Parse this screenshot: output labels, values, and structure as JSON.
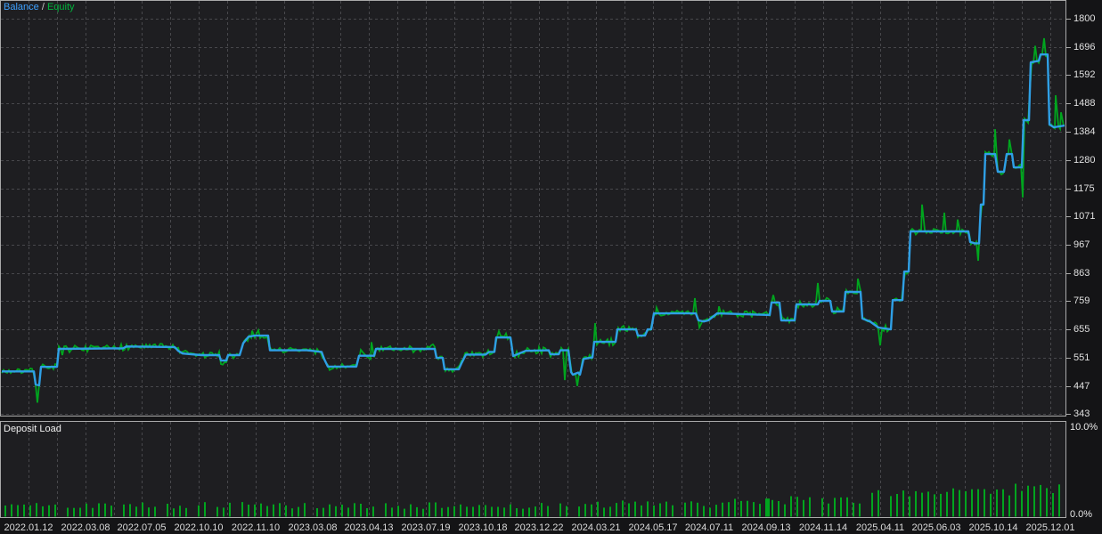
{
  "legend": {
    "balance_label": "Balance",
    "separator": "/",
    "equity_label": "Equity"
  },
  "deposit_load": {
    "title": "Deposit Load",
    "max_label": "10.0%",
    "min_label": "0.0%"
  },
  "colors": {
    "background": "#1e1e21",
    "grid": "#48484c",
    "border": "#a9a9a9",
    "balance_line": "#2f9fe6",
    "equity_line": "#00a51e",
    "deposit_bar": "#00a51e",
    "legend_balance": "#3da1ff",
    "legend_equity": "#00b43c"
  },
  "chart_data": [
    {
      "type": "line",
      "title": "Balance / Equity",
      "legend": [
        "Balance",
        "Equity"
      ],
      "legend_position": "top-left",
      "grid": "dashed",
      "x_unit": "px",
      "ylim": [
        343,
        1800
      ],
      "y_ticks": [
        1800,
        1696,
        1592,
        1488,
        1384,
        1280,
        1175,
        1071,
        967,
        863,
        759,
        655,
        551,
        447,
        343
      ],
      "x_ticks": [
        "2022.01.12",
        "2022.03.08",
        "2022.07.05",
        "2022.10.10",
        "2022.11.10",
        "2023.03.08",
        "2023.04.13",
        "2023.07.19",
        "2023.10.18",
        "2023.12.22",
        "2024.03.21",
        "2024.05.17",
        "2024.07.11",
        "2024.09.13",
        "2024.11.14",
        "2025.04.11",
        "2025.06.03",
        "2025.10.14",
        "2025.12.01"
      ],
      "series": [
        {
          "name": "Balance",
          "color": "#2f9fe6",
          "points": [
            [
              2,
              500
            ],
            [
              38,
              500
            ],
            [
              40,
              452
            ],
            [
              44,
              449
            ],
            [
              46,
              517
            ],
            [
              64,
              517
            ],
            [
              66,
              583
            ],
            [
              138,
              585
            ],
            [
              142,
              592
            ],
            [
              196,
              590
            ],
            [
              200,
              576
            ],
            [
              205,
              566
            ],
            [
              226,
              560
            ],
            [
              246,
              560
            ],
            [
              248,
              540
            ],
            [
              254,
              540
            ],
            [
              256,
              560
            ],
            [
              269,
              560
            ],
            [
              273,
              604
            ],
            [
              279,
              628
            ],
            [
              286,
              632
            ],
            [
              301,
              632
            ],
            [
              303,
              578
            ],
            [
              345,
              578
            ],
            [
              361,
              572
            ],
            [
              364,
              545
            ],
            [
              368,
              518
            ],
            [
              400,
              518
            ],
            [
              403,
              558
            ],
            [
              420,
              558
            ],
            [
              422,
              583
            ],
            [
              488,
              583
            ],
            [
              490,
              550
            ],
            [
              497,
              550
            ],
            [
              499,
              508
            ],
            [
              515,
              508
            ],
            [
              518,
              530
            ],
            [
              523,
              562
            ],
            [
              545,
              562
            ],
            [
              549,
              572
            ],
            [
              555,
              572
            ],
            [
              557,
              625
            ],
            [
              573,
              625
            ],
            [
              576,
              557
            ],
            [
              590,
              576
            ],
            [
              616,
              578
            ],
            [
              618,
              563
            ],
            [
              627,
              563
            ],
            [
              629,
              578
            ],
            [
              638,
              578
            ],
            [
              641,
              498
            ],
            [
              643,
              488
            ],
            [
              649,
              496
            ],
            [
              651,
              488
            ],
            [
              655,
              546
            ],
            [
              663,
              551
            ],
            [
              665,
              551
            ],
            [
              667,
              609
            ],
            [
              691,
              609
            ],
            [
              693,
              655
            ],
            [
              714,
              655
            ],
            [
              716,
              632
            ],
            [
              724,
              632
            ],
            [
              727,
              655
            ],
            [
              731,
              655
            ],
            [
              734,
              714
            ],
            [
              781,
              714
            ],
            [
              784,
              688
            ],
            [
              790,
              684
            ],
            [
              795,
              688
            ],
            [
              802,
              706
            ],
            [
              805,
              714
            ],
            [
              864,
              708
            ],
            [
              866,
              754
            ],
            [
              875,
              754
            ],
            [
              877,
              688
            ],
            [
              892,
              688
            ],
            [
              894,
              747
            ],
            [
              918,
              747
            ],
            [
              920,
              760
            ],
            [
              932,
              760
            ],
            [
              934,
              721
            ],
            [
              947,
              721
            ],
            [
              949,
              793
            ],
            [
              966,
              793
            ],
            [
              968,
              695
            ],
            [
              977,
              683
            ],
            [
              986,
              662
            ],
            [
              1000,
              655
            ],
            [
              1002,
              763
            ],
            [
              1013,
              763
            ],
            [
              1015,
              868
            ],
            [
              1020,
              868
            ],
            [
              1022,
              1016
            ],
            [
              1087,
              1016
            ],
            [
              1089,
              977
            ],
            [
              1094,
              972
            ],
            [
              1099,
              972
            ],
            [
              1101,
              1115
            ],
            [
              1104,
              1115
            ],
            [
              1106,
              1301
            ],
            [
              1117,
              1301
            ],
            [
              1120,
              1236
            ],
            [
              1127,
              1236
            ],
            [
              1130,
              1301
            ],
            [
              1136,
              1301
            ],
            [
              1138,
              1252
            ],
            [
              1147,
              1252
            ],
            [
              1149,
              1426
            ],
            [
              1155,
              1426
            ],
            [
              1157,
              1639
            ],
            [
              1166,
              1645
            ],
            [
              1168,
              1668
            ],
            [
              1176,
              1668
            ],
            [
              1178,
              1410
            ],
            [
              1183,
              1400
            ],
            [
              1195,
              1406
            ]
          ]
        },
        {
          "name": "Equity",
          "color": "#00a51e",
          "style": "noisy-overlay-of-balance",
          "noise_amplitude": 10,
          "spikes": [
            [
              42,
              385
            ],
            [
              70,
              560
            ],
            [
              136,
              600
            ],
            [
              180,
              602
            ],
            [
              250,
              525
            ],
            [
              283,
              650
            ],
            [
              290,
              652
            ],
            [
              370,
              505
            ],
            [
              405,
              580
            ],
            [
              417,
              608
            ],
            [
              486,
              600
            ],
            [
              520,
              545
            ],
            [
              560,
              648
            ],
            [
              568,
              640
            ],
            [
              605,
              590
            ],
            [
              634,
              468
            ],
            [
              648,
              446
            ],
            [
              668,
              678
            ],
            [
              700,
              668
            ],
            [
              737,
              735
            ],
            [
              780,
              770
            ],
            [
              785,
              662
            ],
            [
              807,
              740
            ],
            [
              845,
              722
            ],
            [
              868,
              782
            ],
            [
              898,
              758
            ],
            [
              918,
              826
            ],
            [
              940,
              735
            ],
            [
              963,
              842
            ],
            [
              988,
              596
            ],
            [
              1035,
              1115
            ],
            [
              1060,
              1085
            ],
            [
              1075,
              1060
            ],
            [
              1098,
              908
            ],
            [
              1117,
              1393
            ],
            [
              1133,
              1355
            ],
            [
              1148,
              1141
            ],
            [
              1162,
              1700
            ],
            [
              1172,
              1728
            ],
            [
              1185,
              1518
            ],
            [
              1191,
              1455
            ]
          ]
        }
      ]
    },
    {
      "type": "bar",
      "title": "Deposit Load",
      "ylim_pct": [
        0.0,
        10.0
      ],
      "max_label": "10.0%",
      "min_label": "0.0%",
      "bar_color": "#00a51e",
      "bar_spacing_px": 7,
      "approximate": true,
      "profile": [
        {
          "from": 5,
          "to": 120,
          "min": 0.9,
          "max": 1.5
        },
        {
          "from": 120,
          "to": 300,
          "min": 0.8,
          "max": 1.6
        },
        {
          "from": 300,
          "to": 420,
          "min": 0.8,
          "max": 1.5
        },
        {
          "from": 420,
          "to": 650,
          "min": 0.8,
          "max": 1.5
        },
        {
          "from": 650,
          "to": 820,
          "min": 0.9,
          "max": 1.7
        },
        {
          "from": 820,
          "to": 880,
          "min": 1.2,
          "max": 2.2
        },
        {
          "from": 880,
          "to": 970,
          "min": 1.3,
          "max": 2.2
        },
        {
          "from": 970,
          "to": 1060,
          "min": 1.9,
          "max": 2.8
        },
        {
          "from": 1060,
          "to": 1140,
          "min": 2.1,
          "max": 3.0
        },
        {
          "from": 1140,
          "to": 1192,
          "min": 2.4,
          "max": 3.5
        }
      ],
      "wide_bar": {
        "x": 861,
        "width": 5,
        "pct": 1.9
      }
    }
  ]
}
